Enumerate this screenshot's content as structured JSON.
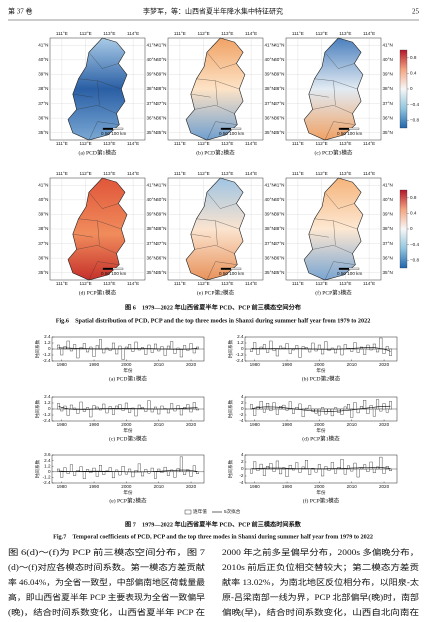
{
  "header": {
    "volume": "第 37 卷",
    "running_title": "李梦军，等：山西省夏半年降水集中特征研究",
    "page": "25"
  },
  "figure6": {
    "lon_labels": [
      "111°E",
      "112°E",
      "113°E",
      "114°E"
    ],
    "lat_labels": [
      "41°N",
      "40°N",
      "39°N",
      "38°N",
      "37°N",
      "36°N",
      "35°N"
    ],
    "scale_label": "0  50 100 km",
    "colorbar_ticks": [
      "0.8",
      "0.4",
      "0",
      "−0.4",
      "−0.8"
    ],
    "panels": [
      "(a) PCD第1模态",
      "(b) PCD第2模态",
      "(c) PCD第3模态",
      "(d) PCP第1模态",
      "(e) PCP第2模态",
      "(f) PCP第3模态"
    ],
    "caption_cn": "图 6　1979—2022 年山西省夏半年 PCD、PCP 前三模态空间分布",
    "caption_en": "Fig.6　Spatial distribution of PCD, PCP and the top three modes in Shanxi during summer half year from 1979 to 2022"
  },
  "figure7": {
    "type": "bar",
    "x": [
      1979,
      1980,
      1981,
      1982,
      1983,
      1984,
      1985,
      1986,
      1987,
      1988,
      1989,
      1990,
      1991,
      1992,
      1993,
      1994,
      1995,
      1996,
      1997,
      1998,
      1999,
      2000,
      2001,
      2002,
      2003,
      2004,
      2005,
      2006,
      2007,
      2008,
      2009,
      2010,
      2011,
      2012,
      2013,
      2014,
      2015,
      2016,
      2017,
      2018,
      2019,
      2020,
      2021,
      2022
    ],
    "xlim": [
      1977,
      2024
    ],
    "xticks": [
      1980,
      1990,
      2000,
      2010,
      2020
    ],
    "x_label": "年份",
    "y_label": "时间系数",
    "legend": [
      "逐年值",
      "5次拟合"
    ],
    "panels": [
      {
        "title": "(a) PCD第1模态",
        "ylim": [
          -2.4,
          2.4
        ],
        "yticks": [
          2.4,
          1.2,
          0,
          -1.2,
          -2.4
        ],
        "values": [
          0.8,
          -1.2,
          0.5,
          1.6,
          -0.4,
          0.9,
          -1.8,
          0.3,
          1.1,
          -0.6,
          0.4,
          -1.5,
          0.7,
          1.9,
          -0.8,
          0.2,
          -0.3,
          1.2,
          -1.0,
          0.6,
          -2.1,
          0.4,
          0.9,
          -0.5,
          1.4,
          -0.2,
          0.3,
          -1.1,
          0.8,
          -0.7,
          1.0,
          -0.4,
          0.5,
          -1.3,
          0.6,
          1.5,
          -0.9,
          0.2,
          -1.6,
          0.7,
          -0.3,
          1.1,
          -0.8,
          0.4
        ]
      },
      {
        "title": "(b) PCD第2模态",
        "ylim": [
          -2.4,
          2.4
        ],
        "yticks": [
          2.4,
          1.2,
          0,
          -1.2,
          -2.4
        ],
        "values": [
          -0.5,
          1.3,
          -1.1,
          0.4,
          0.9,
          -0.7,
          1.6,
          -0.3,
          -1.4,
          0.6,
          0.2,
          1.1,
          -0.9,
          -0.2,
          0.7,
          -1.7,
          0.5,
          0.3,
          -0.6,
          1.2,
          -0.4,
          0.8,
          -1.0,
          1.5,
          -0.3,
          0.2,
          -0.8,
          0.6,
          -1.2,
          0.9,
          0.1,
          -0.5,
          1.3,
          -0.7,
          0.4,
          -1.1,
          0.8,
          -0.2,
          1.0,
          -0.6,
          2.2,
          -0.9,
          0.5,
          -1.3
        ]
      },
      {
        "title": "(c) PCD第3模态",
        "ylim": [
          -2.4,
          2.4
        ],
        "yticks": [
          2.4,
          1.2,
          0,
          -1.2,
          -2.4
        ],
        "values": [
          1.1,
          -0.4,
          0.6,
          -1.3,
          0.8,
          0.2,
          -0.9,
          1.4,
          -0.5,
          0.3,
          -1.6,
          0.7,
          0.4,
          -0.2,
          1.0,
          -0.8,
          0.5,
          -1.1,
          0.6,
          0.9,
          -0.3,
          1.2,
          -0.7,
          0.2,
          -1.4,
          0.8,
          0.3,
          -0.5,
          1.7,
          -0.6,
          0.4,
          -1.0,
          0.6,
          0.1,
          -0.8,
          1.1,
          -0.4,
          0.7,
          -1.2,
          0.3,
          0.9,
          -0.6,
          1.3,
          -0.2
        ]
      },
      {
        "title": "(d) PCP第1模态",
        "ylim": [
          -4,
          4
        ],
        "yticks": [
          4,
          2,
          0,
          -2,
          -4
        ],
        "values": [
          1.5,
          -2.2,
          0.8,
          2.6,
          -1.1,
          1.9,
          -0.6,
          2.1,
          -1.8,
          0.9,
          1.3,
          -0.4,
          2.4,
          -1.5,
          0.6,
          1.7,
          -2.6,
          0.3,
          1.1,
          -0.9,
          -1.4,
          -2.1,
          0.5,
          -1.7,
          -0.8,
          -2.3,
          0.4,
          -1.2,
          -1.9,
          0.7,
          1.6,
          -2.8,
          2.2,
          -1.3,
          0.9,
          2.9,
          -1.6,
          1.2,
          -2.4,
          3.1,
          -0.7,
          1.8,
          -1.1,
          2.5
        ]
      },
      {
        "title": "(e) PCP第2模态",
        "ylim": [
          -2.4,
          3.6
        ],
        "yticks": [
          3.6,
          2.4,
          1.2,
          0,
          -1.2,
          -2.4
        ],
        "values": [
          0.6,
          -1.2,
          0.9,
          -0.4,
          1.5,
          -0.8,
          0.3,
          1.1,
          -1.5,
          0.5,
          -0.2,
          0.8,
          -1.0,
          1.4,
          -0.6,
          0.2,
          0.9,
          -1.3,
          0.4,
          -0.7,
          1.2,
          -0.5,
          0.6,
          -1.1,
          0.3,
          1.7,
          -0.9,
          0.5,
          -0.3,
          0.8,
          -1.4,
          0.6,
          -0.2,
          1.0,
          -0.8,
          0.4,
          -1.2,
          0.7,
          3.2,
          -0.6,
          0.5,
          -1.0,
          1.3,
          -0.4
        ]
      },
      {
        "title": "(f) PCP第3模态",
        "ylim": [
          -4,
          4
        ],
        "yticks": [
          4,
          2,
          0,
          -2,
          -4
        ],
        "values": [
          -1.2,
          2.1,
          -0.5,
          1.4,
          -1.9,
          0.8,
          1.6,
          -0.7,
          2.3,
          -1.4,
          0.4,
          -2.2,
          1.1,
          -0.3,
          1.8,
          -1.0,
          0.6,
          2.5,
          -1.6,
          0.2,
          -0.9,
          1.3,
          -2.0,
          0.7,
          -0.4,
          1.9,
          -1.2,
          0.5,
          2.8,
          -1.5,
          0.9,
          -0.6,
          1.7,
          -2.3,
          0.3,
          1.2,
          -0.8,
          2.0,
          -1.1,
          0.6,
          3.4,
          -1.3,
          0.8,
          -0.5
        ]
      }
    ],
    "caption_cn": "图 7　1979—2022 年山西省夏半年 PCD、PCP 前三模态时间系数",
    "caption_en": "Fig.7　Temporal coefficients of PCD, PCP and the top three modes in Shanxi during summer half year from 1979 to 2022"
  },
  "body": {
    "left": [
      "图 6(d)～(f)为 PCP 前三模态空间分布，图 7",
      "(d)～(f)对应各模态时间系数。第一模态方差贡献",
      "率 46.04%，为全省一致型，中部偏南地区荷载量最",
      "高，即山西省夏半年 PCP 主要表现为全省一致偏早",
      "(晚)，结合时间系数变化，山西省夏半年 PCP 在"
    ],
    "right": [
      "2000 年之前多呈偏早分布，2000s 多偏晚分布，",
      "2010s 前后正负位相交替较大；第二模态方差贡",
      "献率 13.02%，为南北地区反位相分布，以阳泉-太",
      "原-吕梁南部一线为界，PCP 北部偏早(晚)时，南部",
      "偏晚(早)，结合时间系数变化，山西自北向南在"
    ]
  }
}
